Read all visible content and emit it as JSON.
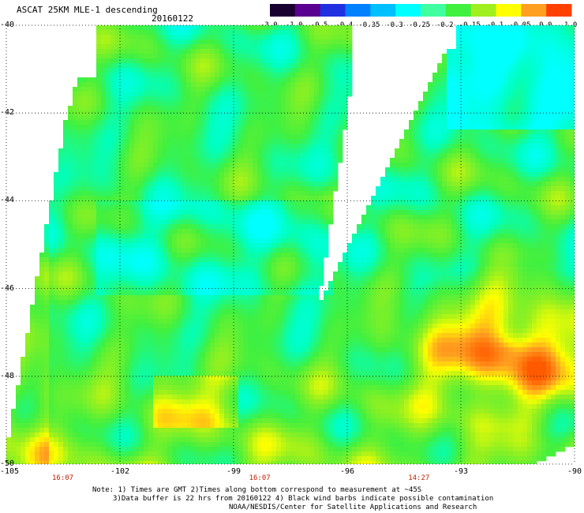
{
  "header": {
    "title": "ASCAT 25KM MLE-1 descending",
    "date": "20160122"
  },
  "colorbar": {
    "ticks": [
      "-3.0",
      "-1.0",
      "-0.5",
      "-0.4",
      "-0.35",
      "-0.3",
      "-0.25",
      "-0.2",
      "-0.15",
      "-0.1",
      "-0.05",
      "0.0",
      "1.0"
    ],
    "colors": [
      "#1a0030",
      "#5a0090",
      "#2030e0",
      "#0080ff",
      "#00c0ff",
      "#00ffff",
      "#40ffa0",
      "#40f040",
      "#a0f020",
      "#ffff00",
      "#ffa020",
      "#ff4000"
    ]
  },
  "map": {
    "lat_labels": [
      "-40",
      "-42",
      "-44",
      "-46",
      "-48",
      "-50"
    ],
    "lon_labels": [
      "-105",
      "-102",
      "-99",
      "-96",
      "-93",
      "-90"
    ],
    "lat_range": [
      -50,
      -40
    ],
    "lon_range": [
      -105,
      -90
    ],
    "gridlines": true,
    "swath_times": [
      {
        "time": "16:07",
        "lon": -103.5
      },
      {
        "time": "16:07",
        "lon": -98.3
      },
      {
        "time": "14:27",
        "lon": -94.1
      }
    ]
  },
  "notes": {
    "line1": "Note: 1) Times are GMT 2)Times along bottom correspond to measurement at ~45S",
    "line2": "3)Data buffer is 22 hrs from 20160122 4) Black wind barbs indicate possible contamination",
    "line3": "NOAA/NESDIS/Center for Satellite Applications and Research"
  }
}
